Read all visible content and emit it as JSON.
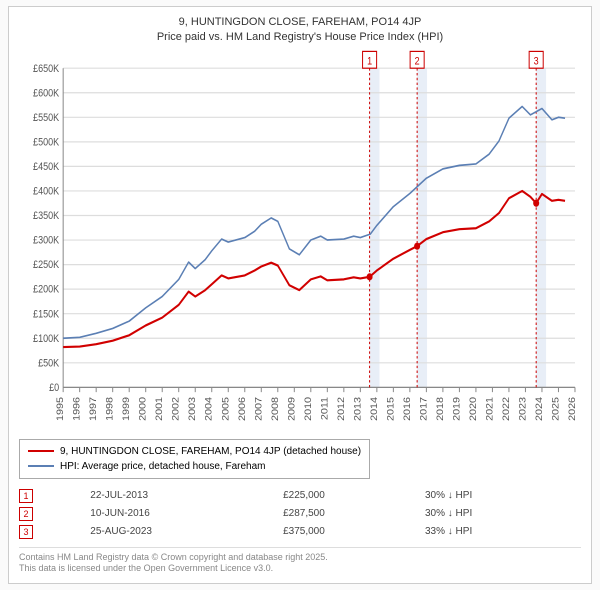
{
  "title_line1": "9, HUNTINGDON CLOSE, FAREHAM, PO14 4JP",
  "title_line2": "Price paid vs. HM Land Registry's House Price Index (HPI)",
  "chart": {
    "bg_color": "#ffffff",
    "grid_color": "#dddddd",
    "axis_color": "#888888",
    "tick_font_size": 9,
    "ylabel_prefix": "£",
    "ylim": [
      0,
      650000
    ],
    "ytick_step": 50000,
    "yticks": [
      "£0",
      "£50K",
      "£100K",
      "£150K",
      "£200K",
      "£250K",
      "£300K",
      "£350K",
      "£400K",
      "£450K",
      "£500K",
      "£550K",
      "£600K",
      "£650K"
    ],
    "xlim": [
      1995,
      2026
    ],
    "xticks": [
      1995,
      1996,
      1997,
      1998,
      1999,
      2000,
      2001,
      2002,
      2003,
      2004,
      2005,
      2006,
      2007,
      2008,
      2009,
      2010,
      2011,
      2012,
      2013,
      2014,
      2015,
      2016,
      2017,
      2018,
      2019,
      2020,
      2021,
      2022,
      2023,
      2024,
      2025,
      2026
    ],
    "series_hpi": {
      "color": "#5b7fb4",
      "width": 1.4,
      "points": [
        [
          1995,
          100000
        ],
        [
          1996,
          102000
        ],
        [
          1997,
          110000
        ],
        [
          1998,
          120000
        ],
        [
          1999,
          135000
        ],
        [
          2000,
          162000
        ],
        [
          2001,
          185000
        ],
        [
          2002,
          220000
        ],
        [
          2002.6,
          255000
        ],
        [
          2003,
          242000
        ],
        [
          2003.6,
          260000
        ],
        [
          2004,
          278000
        ],
        [
          2004.6,
          302000
        ],
        [
          2005,
          296000
        ],
        [
          2006,
          305000
        ],
        [
          2006.6,
          318000
        ],
        [
          2007,
          332000
        ],
        [
          2007.6,
          345000
        ],
        [
          2008,
          338000
        ],
        [
          2008.7,
          282000
        ],
        [
          2009.3,
          270000
        ],
        [
          2010,
          300000
        ],
        [
          2010.6,
          308000
        ],
        [
          2011,
          300000
        ],
        [
          2012,
          302000
        ],
        [
          2012.6,
          308000
        ],
        [
          2013,
          305000
        ],
        [
          2013.6,
          312000
        ],
        [
          2014,
          330000
        ],
        [
          2015,
          368000
        ],
        [
          2016,
          395000
        ],
        [
          2017,
          426000
        ],
        [
          2018,
          445000
        ],
        [
          2019,
          452000
        ],
        [
          2020,
          455000
        ],
        [
          2020.8,
          475000
        ],
        [
          2021.4,
          502000
        ],
        [
          2022,
          548000
        ],
        [
          2022.8,
          572000
        ],
        [
          2023.3,
          555000
        ],
        [
          2024,
          568000
        ],
        [
          2024.6,
          545000
        ],
        [
          2025,
          550000
        ],
        [
          2025.4,
          548000
        ]
      ]
    },
    "series_price": {
      "color": "#d10000",
      "width": 1.8,
      "points": [
        [
          1995,
          82000
        ],
        [
          1996,
          83000
        ],
        [
          1997,
          88000
        ],
        [
          1998,
          95000
        ],
        [
          1999,
          106000
        ],
        [
          2000,
          126000
        ],
        [
          2001,
          142000
        ],
        [
          2002,
          168000
        ],
        [
          2002.6,
          195000
        ],
        [
          2003,
          185000
        ],
        [
          2003.6,
          198000
        ],
        [
          2004,
          210000
        ],
        [
          2004.6,
          228000
        ],
        [
          2005,
          222000
        ],
        [
          2006,
          228000
        ],
        [
          2006.6,
          238000
        ],
        [
          2007,
          246000
        ],
        [
          2007.6,
          254000
        ],
        [
          2008,
          248000
        ],
        [
          2008.7,
          208000
        ],
        [
          2009.3,
          198000
        ],
        [
          2010,
          220000
        ],
        [
          2010.6,
          226000
        ],
        [
          2011,
          218000
        ],
        [
          2012,
          220000
        ],
        [
          2012.6,
          224000
        ],
        [
          2013,
          222000
        ],
        [
          2013.56,
          225000
        ],
        [
          2014,
          238000
        ],
        [
          2015,
          262000
        ],
        [
          2016,
          280000
        ],
        [
          2016.44,
          287500
        ],
        [
          2017,
          302000
        ],
        [
          2018,
          316000
        ],
        [
          2019,
          322000
        ],
        [
          2020,
          324000
        ],
        [
          2020.8,
          338000
        ],
        [
          2021.4,
          355000
        ],
        [
          2022,
          385000
        ],
        [
          2022.8,
          400000
        ],
        [
          2023.3,
          388000
        ],
        [
          2023.65,
          375000
        ],
        [
          2024,
          394000
        ],
        [
          2024.6,
          380000
        ],
        [
          2025,
          382000
        ],
        [
          2025.4,
          380000
        ]
      ]
    },
    "marker_bands": [
      {
        "x": 2013.56,
        "label": "1",
        "band_width": 0.6
      },
      {
        "x": 2016.44,
        "label": "2",
        "band_width": 0.6
      },
      {
        "x": 2023.65,
        "label": "3",
        "band_width": 0.6
      }
    ],
    "marker_box_border": "#cc0000",
    "marker_box_fill": "#ffffff",
    "marker_dash_color": "#cc0000",
    "band_fill": "#e8eef7"
  },
  "legend": {
    "series1_label": "9, HUNTINGDON CLOSE, FAREHAM, PO14 4JP (detached house)",
    "series1_color": "#d10000",
    "series2_label": "HPI: Average price, detached house, Fareham",
    "series2_color": "#5b7fb4"
  },
  "marker_rows": [
    {
      "num": "1",
      "date": "22-JUL-2013",
      "price": "£225,000",
      "diff": "30% ↓ HPI"
    },
    {
      "num": "2",
      "date": "10-JUN-2016",
      "price": "£287,500",
      "diff": "30% ↓ HPI"
    },
    {
      "num": "3",
      "date": "25-AUG-2023",
      "price": "£375,000",
      "diff": "33% ↓ HPI"
    }
  ],
  "footer_line1": "Contains HM Land Registry data © Crown copyright and database right 2025.",
  "footer_line2": "This data is licensed under the Open Government Licence v3.0."
}
